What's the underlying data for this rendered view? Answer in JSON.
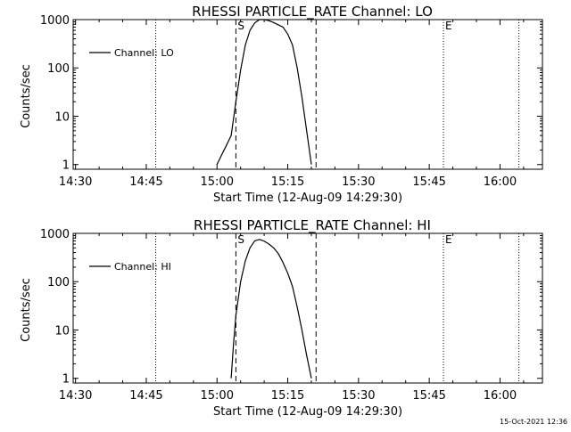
{
  "colors": {
    "background": "#ffffff",
    "foreground": "#000000"
  },
  "footer": {
    "timestamp": "15-Oct-2021 12:36"
  },
  "chart_data": [
    {
      "type": "line",
      "title": "RHESSI PARTICLE_RATE Channel: LO",
      "xlabel": "Start Time (12-Aug-09 14:29:30)",
      "ylabel": "Counts/sec",
      "yscale": "log",
      "xlim": [
        "14:29:30",
        "16:09:00"
      ],
      "ylim": [
        0.8,
        1000
      ],
      "xticks": [
        "14:30",
        "14:45",
        "15:00",
        "15:15",
        "15:30",
        "15:45",
        "16:00"
      ],
      "yticks": [
        "1",
        "10",
        "100",
        "1000"
      ],
      "legend": {
        "placement": "top-left",
        "entries": [
          "Channel: LO"
        ]
      },
      "vlines": [
        {
          "x": "14:47",
          "style": "dotted"
        },
        {
          "x": "15:04",
          "style": "dashed",
          "label": "S"
        },
        {
          "x": "15:21",
          "style": "dashed"
        },
        {
          "x": "15:48",
          "style": "dotted",
          "label": "E"
        },
        {
          "x": "16:04",
          "style": "dotted"
        }
      ],
      "series": [
        {
          "name": "Channel: LO",
          "x": [
            "15:00",
            "15:01",
            "15:02",
            "15:03",
            "15:04",
            "15:05",
            "15:06",
            "15:07",
            "15:08",
            "15:09",
            "15:10",
            "15:11",
            "15:12",
            "15:13",
            "15:14",
            "15:15",
            "15:16",
            "15:17",
            "15:18",
            "15:19",
            "15:20"
          ],
          "y": [
            1,
            1.6,
            2.5,
            4,
            20,
            90,
            300,
            600,
            850,
            1000,
            1000,
            950,
            870,
            780,
            700,
            500,
            300,
            100,
            25,
            5,
            1
          ]
        }
      ]
    },
    {
      "type": "line",
      "title": "RHESSI PARTICLE_RATE Channel: HI",
      "xlabel": "Start Time (12-Aug-09 14:29:30)",
      "ylabel": "Counts/sec",
      "yscale": "log",
      "xlim": [
        "14:29:30",
        "16:09:00"
      ],
      "ylim": [
        0.8,
        1000
      ],
      "xticks": [
        "14:30",
        "14:45",
        "15:00",
        "15:15",
        "15:30",
        "15:45",
        "16:00"
      ],
      "yticks": [
        "1",
        "10",
        "100",
        "1000"
      ],
      "legend": {
        "placement": "top-left",
        "entries": [
          "Channel: HI"
        ]
      },
      "vlines": [
        {
          "x": "14:47",
          "style": "dotted"
        },
        {
          "x": "15:04",
          "style": "dashed",
          "label": "S"
        },
        {
          "x": "15:21",
          "style": "dashed"
        },
        {
          "x": "15:48",
          "style": "dotted",
          "label": "E"
        },
        {
          "x": "16:04",
          "style": "dotted"
        }
      ],
      "series": [
        {
          "name": "Channel: HI",
          "x": [
            "15:03",
            "15:03:30",
            "15:04",
            "15:05",
            "15:06",
            "15:07",
            "15:08",
            "15:09",
            "15:10",
            "15:11",
            "15:12",
            "15:13",
            "15:14",
            "15:15",
            "15:16",
            "15:17",
            "15:18",
            "15:19",
            "15:20"
          ],
          "y": [
            1,
            5,
            20,
            100,
            270,
            500,
            700,
            750,
            690,
            600,
            500,
            380,
            250,
            150,
            80,
            30,
            10,
            3,
            1
          ]
        }
      ]
    }
  ]
}
